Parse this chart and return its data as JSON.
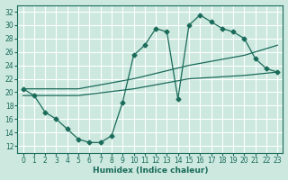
{
  "xlabel": "Humidex (Indice chaleur)",
  "bg_color": "#cce8df",
  "grid_color": "#ffffff",
  "line_color": "#1a6b5a",
  "xlim": [
    -0.5,
    23.5
  ],
  "ylim": [
    11,
    33
  ],
  "xticks": [
    0,
    1,
    2,
    3,
    4,
    5,
    6,
    7,
    8,
    9,
    10,
    11,
    12,
    13,
    14,
    15,
    16,
    17,
    18,
    19,
    20,
    21,
    22,
    23
  ],
  "yticks": [
    12,
    14,
    16,
    18,
    20,
    22,
    24,
    26,
    28,
    30,
    32
  ],
  "line1_x": [
    0,
    1,
    2,
    3,
    4,
    5,
    6,
    7,
    8,
    9,
    10,
    11,
    12,
    13,
    14,
    15,
    16,
    17,
    18,
    19,
    20,
    21,
    22,
    23
  ],
  "line1_y": [
    20.5,
    19.5,
    17.0,
    16.0,
    14.5,
    13.0,
    12.5,
    12.5,
    13.5,
    18.5,
    25.5,
    27.0,
    29.5,
    29.0,
    19.0,
    30.0,
    31.5,
    30.5,
    29.5,
    29.0,
    28.0,
    25.0,
    23.5,
    23.0
  ],
  "line2_x": [
    0,
    5,
    10,
    15,
    20,
    23
  ],
  "line2_y": [
    19.5,
    19.5,
    20.5,
    22.0,
    22.5,
    23.0
  ],
  "line3_x": [
    0,
    5,
    10,
    15,
    20,
    23
  ],
  "line3_y": [
    20.5,
    20.5,
    22.0,
    24.0,
    25.5,
    27.0
  ]
}
